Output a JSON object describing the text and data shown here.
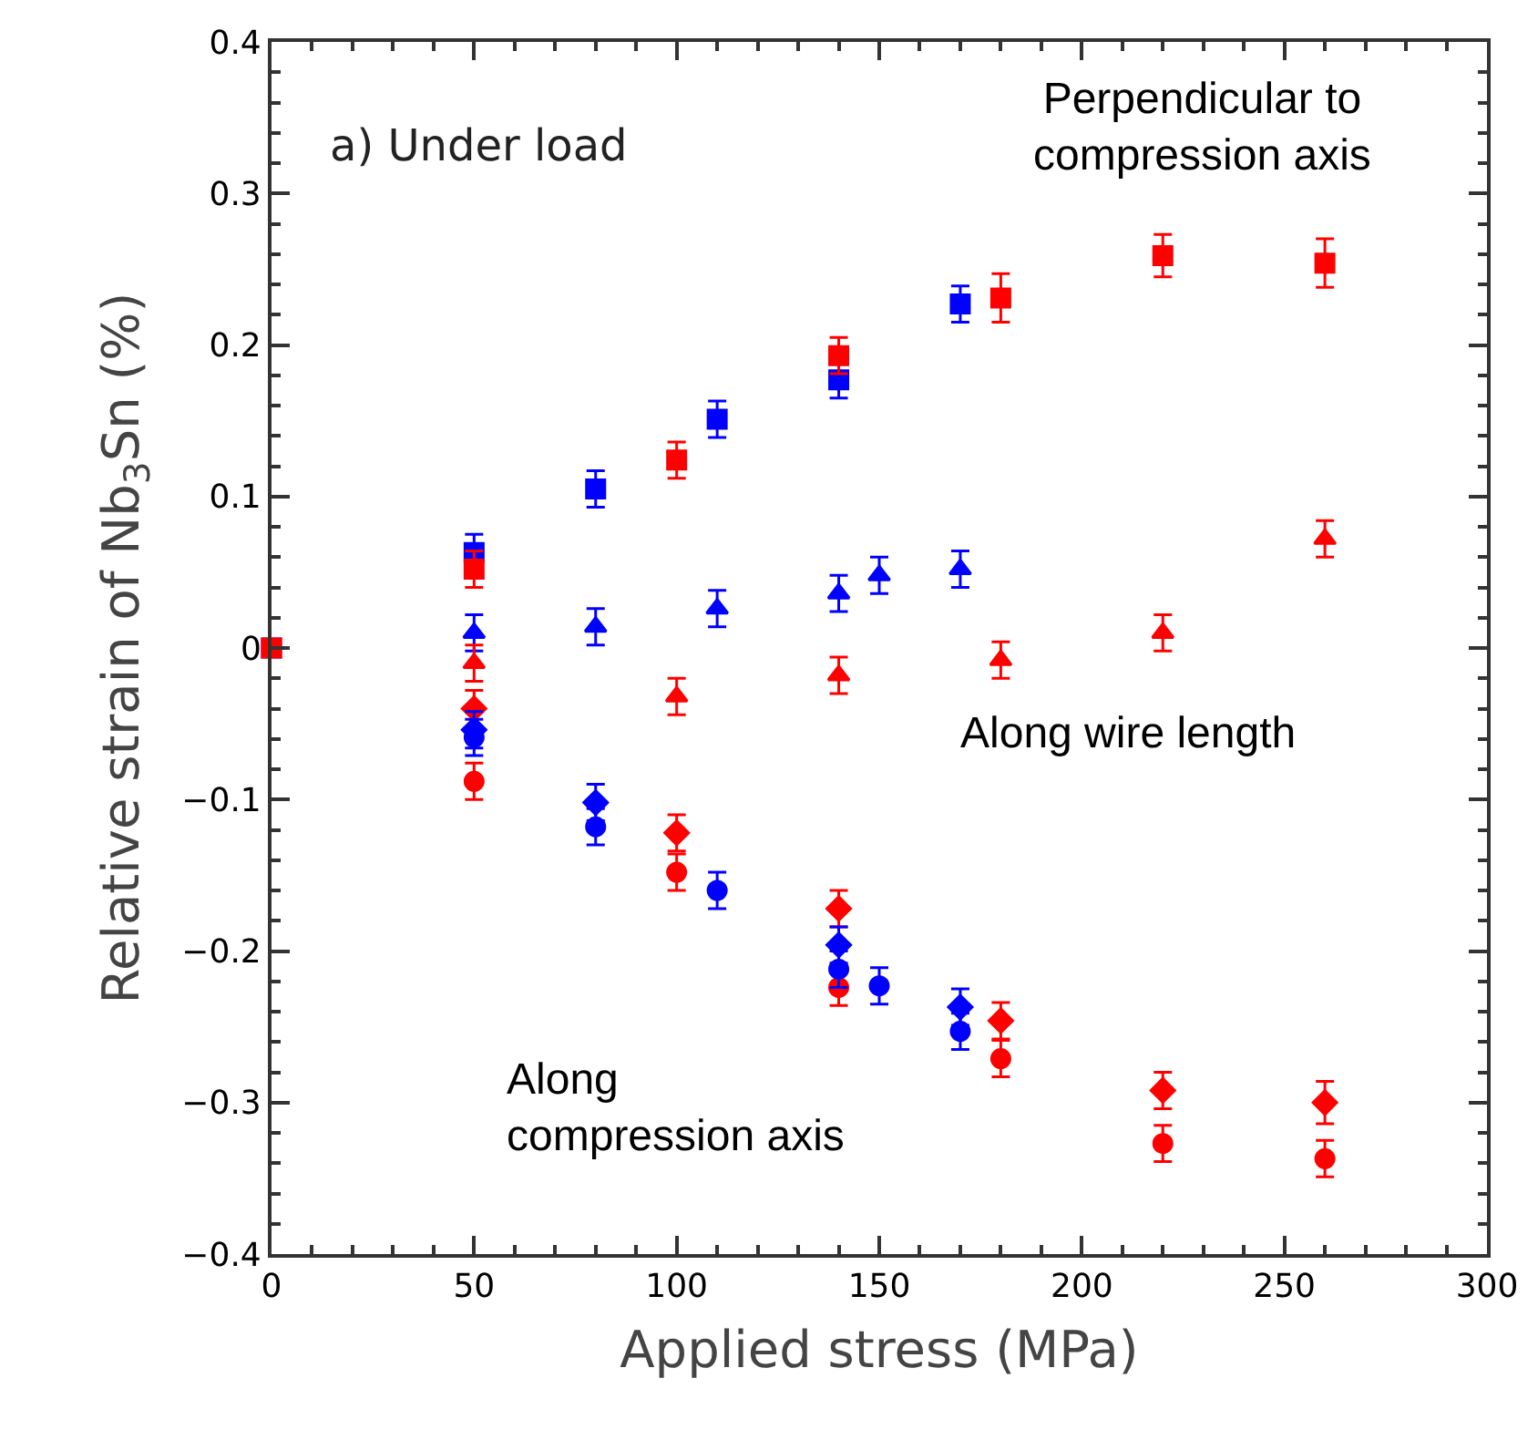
{
  "chart_data": {
    "type": "scatter",
    "xlabel": "Applied stress (MPa)",
    "ylabel": "Relative strain of Nb$_{3}$Sn (%)",
    "xlim": [
      0,
      300
    ],
    "xticks": [
      0,
      50,
      100,
      150,
      200,
      250,
      300
    ],
    "ylim": [
      -0.4,
      0.4
    ],
    "yticks": [
      {
        "value": -0.4,
        "label": "−0.4"
      },
      {
        "value": -0.3,
        "label": "−0.3"
      },
      {
        "value": -0.2,
        "label": "−0.2"
      },
      {
        "value": -0.1,
        "label": "−0.1"
      },
      0,
      0.1,
      0.2,
      0.3,
      0.4
    ],
    "series": [
      {
        "color": "#0000ff",
        "marker": "square",
        "x": [
          0,
          50,
          80,
          110,
          140,
          170
        ],
        "values": [
          0,
          0.063,
          0.105,
          0.151,
          0.177,
          0.227
        ],
        "errors": [
          null,
          0.012,
          0.012,
          0.012,
          0.012,
          0.012
        ]
      },
      {
        "color": "#ff0000",
        "marker": "square",
        "x": [
          0,
          50,
          100,
          140,
          180,
          220,
          260
        ],
        "values": [
          0,
          0.052,
          0.124,
          0.193,
          0.231,
          0.259,
          0.254
        ],
        "errors": [
          null,
          0.012,
          0.012,
          0.012,
          0.016,
          0.014,
          0.016
        ]
      },
      {
        "color": "#0000ff",
        "marker": "triangle",
        "x": [
          50,
          80,
          110,
          140,
          150,
          170
        ],
        "values": [
          0.01,
          0.014,
          0.026,
          0.036,
          0.048,
          0.052
        ],
        "errors": [
          0.012,
          0.012,
          0.012,
          0.012,
          0.012,
          0.012
        ]
      },
      {
        "color": "#ff0000",
        "marker": "triangle",
        "x": [
          50,
          100,
          140,
          180,
          220,
          260
        ],
        "values": [
          -0.01,
          -0.032,
          -0.018,
          -0.008,
          0.01,
          0.072
        ],
        "errors": [
          0.012,
          0.012,
          0.012,
          0.012,
          0.012,
          0.012
        ]
      },
      {
        "color": "#ff0000",
        "marker": "diamond",
        "x": [
          50,
          100,
          140,
          180,
          220,
          260
        ],
        "values": [
          -0.04,
          -0.122,
          -0.172,
          -0.246,
          -0.292,
          -0.3
        ],
        "errors": [
          0.012,
          0.012,
          0.012,
          0.012,
          0.012,
          0.014
        ]
      },
      {
        "color": "#ff0000",
        "marker": "circle",
        "x": [
          50,
          100,
          140,
          180,
          220,
          260
        ],
        "values": [
          -0.088,
          -0.148,
          -0.224,
          -0.271,
          -0.327,
          -0.337
        ],
        "errors": [
          0.012,
          0.012,
          0.012,
          0.012,
          0.012,
          0.012
        ]
      },
      {
        "color": "#0000ff",
        "marker": "diamond",
        "x": [
          50,
          80,
          140,
          170
        ],
        "values": [
          -0.054,
          -0.102,
          -0.196,
          -0.237
        ],
        "errors": [
          0.012,
          0.012,
          0.012,
          0.012
        ]
      },
      {
        "color": "#0000ff",
        "marker": "circle",
        "x": [
          50,
          80,
          110,
          140,
          150,
          170
        ],
        "values": [
          -0.059,
          -0.118,
          -0.16,
          -0.212,
          -0.223,
          -0.253
        ],
        "errors": [
          0.012,
          0.012,
          0.012,
          0.012,
          0.012,
          0.012
        ]
      }
    ],
    "annotations": [
      "a) Under load",
      "Perpendicular to\ncompression axis",
      "Along wire length",
      "Along\ncompression axis"
    ]
  }
}
